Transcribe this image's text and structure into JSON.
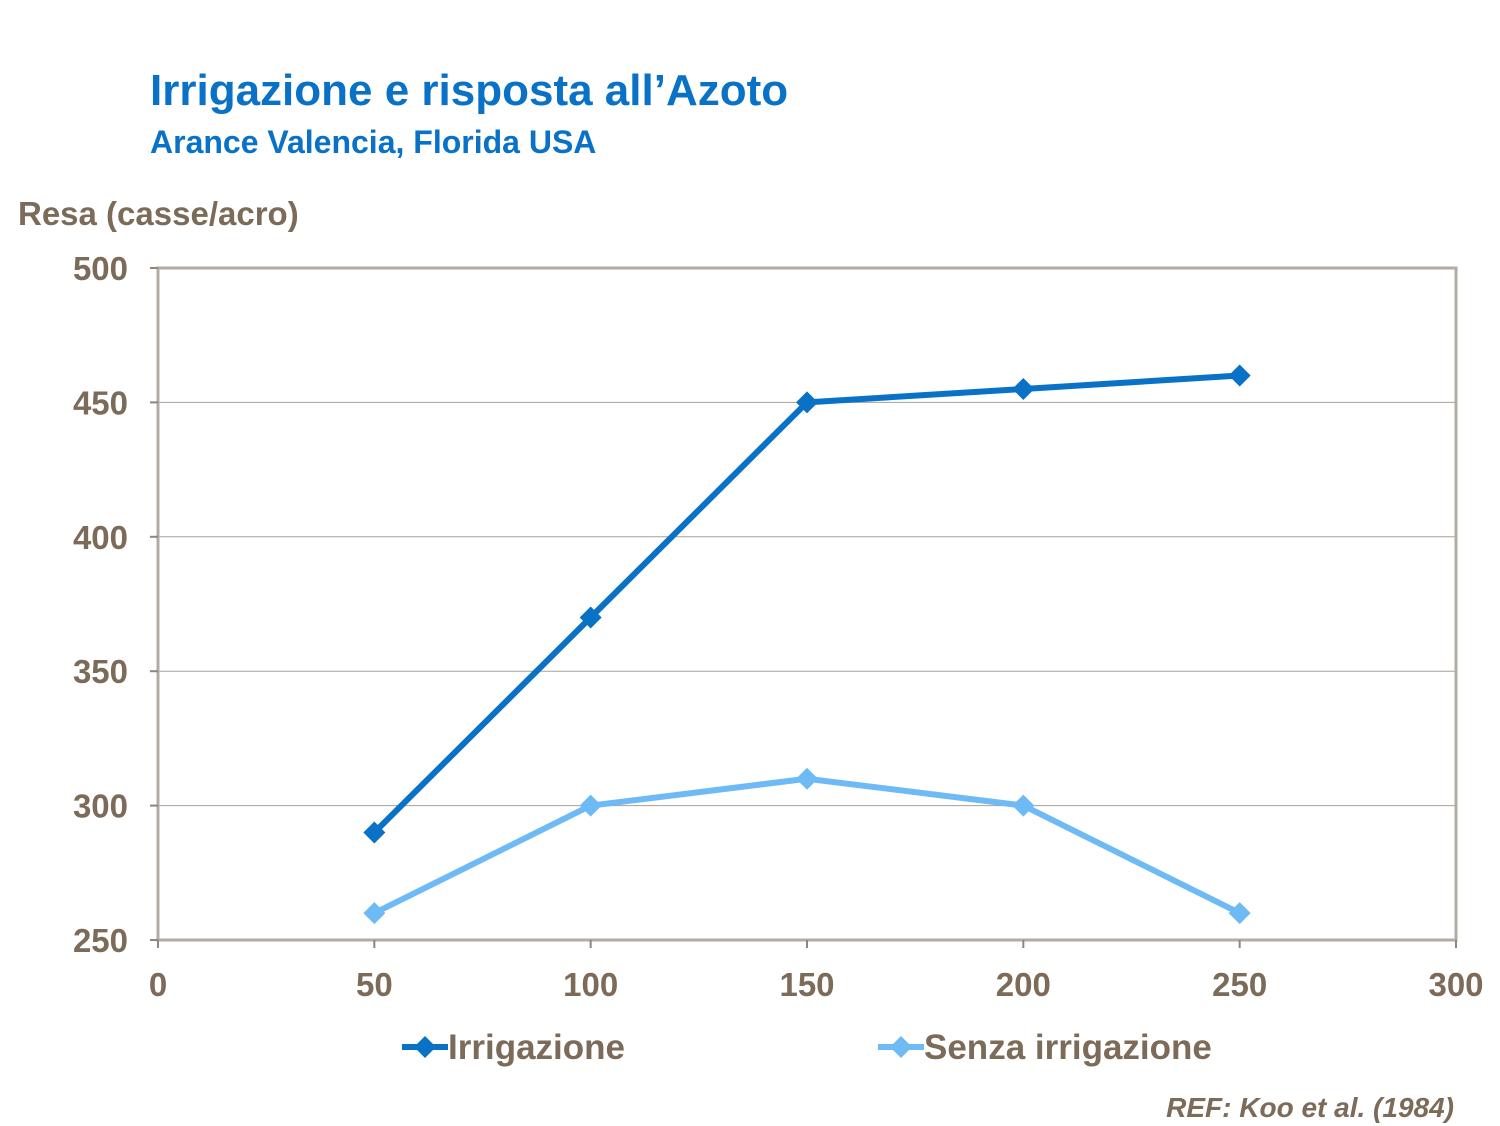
{
  "header": {
    "title": "Irrigazione e risposta all’Azoto",
    "subtitle": "Arance Valencia, Florida USA"
  },
  "reference": "REF: Koo et al. (1984)",
  "chart_data": {
    "type": "line",
    "title": "Irrigazione e risposta all’Azoto",
    "subtitle": "Arance Valencia, Florida USA",
    "ylabel": "Resa (casse/acro)",
    "xlabel": "",
    "xlim": [
      0,
      300
    ],
    "ylim": [
      250,
      500
    ],
    "x_ticks": [
      0,
      50,
      100,
      150,
      200,
      250,
      300
    ],
    "y_ticks": [
      250,
      300,
      350,
      400,
      450,
      500
    ],
    "grid": "horizontal",
    "legend_position": "bottom",
    "marker": "diamond",
    "x": [
      50,
      100,
      150,
      200,
      250
    ],
    "series": [
      {
        "name": "Irrigazione",
        "color": "#0a72c6",
        "values": [
          290,
          370,
          450,
          455,
          460
        ]
      },
      {
        "name": "Senza irrigazione",
        "color": "#6ebaf5",
        "values": [
          260,
          300,
          310,
          300,
          260
        ]
      }
    ]
  }
}
